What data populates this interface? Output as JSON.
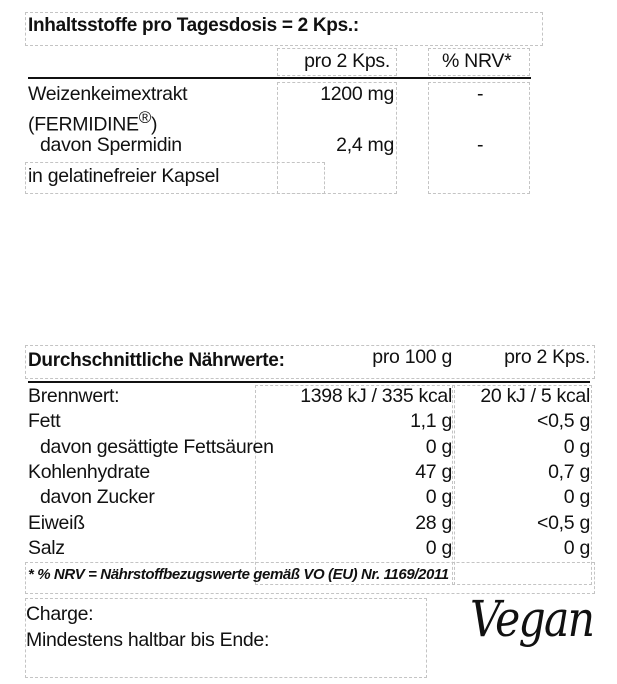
{
  "ingredients": {
    "title": "Inhaltsstoffe pro Tagesdosis = 2 Kps.:",
    "col_per_dose": "pro 2 Kps.",
    "col_nrv": "% NRV*",
    "rows": [
      {
        "name": "Weizenkeimextrakt",
        "value": "1200 mg",
        "nrv": "-"
      },
      {
        "name": "(FERMIDINE",
        "mark": "®",
        "suffix": ")"
      },
      {
        "name": "davon Spermidin",
        "value": "2,4 mg",
        "nrv": "-"
      }
    ],
    "note": "in gelatinefreier Kapsel"
  },
  "nutrition": {
    "title": "Durchschnittliche Nährwerte:",
    "col_100g": "pro 100 g",
    "col_dose": "pro 2 Kps.",
    "rows": [
      {
        "name": "Brennwert:",
        "per100": "1398 kJ / 335 kcal",
        "perdose": "20 kJ / 5 kcal"
      },
      {
        "name": "Fett",
        "per100": "1,1 g",
        "perdose": "<0,5 g"
      },
      {
        "name": "davon gesättigte Fettsäuren",
        "per100": "0 g",
        "perdose": "0 g"
      },
      {
        "name": "Kohlenhydrate",
        "per100": "47 g",
        "perdose": "0,7 g"
      },
      {
        "name": "davon Zucker",
        "per100": "0 g",
        "perdose": "0 g"
      },
      {
        "name": "Eiweiß",
        "per100": "28 g",
        "perdose": "<0,5 g"
      },
      {
        "name": "Salz",
        "per100": "0 g",
        "perdose": "0 g"
      }
    ],
    "footnote": "* % NRV = Nährstoffbezugswerte gemäß  VO (EU) Nr. 1169/2011"
  },
  "batch": {
    "charge_label": "Charge:",
    "best_before_label": "Mindestens haltbar bis Ende:"
  },
  "logo": {
    "text": "Vegan"
  }
}
